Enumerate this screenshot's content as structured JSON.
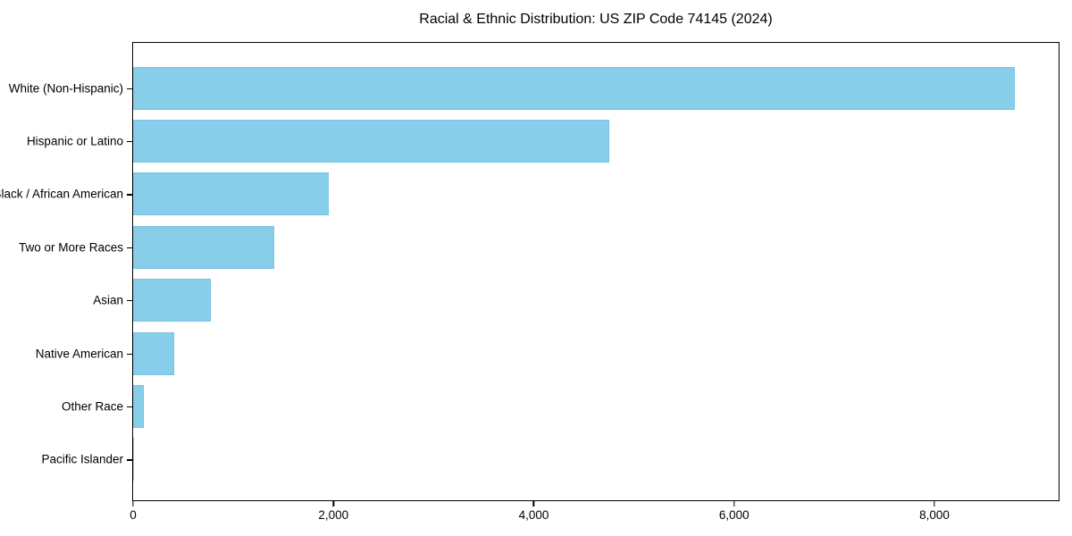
{
  "chart": {
    "title": "Racial & Ethnic Distribution: US ZIP Code 74145 (2024)"
  },
  "chart_data": {
    "type": "bar",
    "orientation": "horizontal",
    "title": "Racial & Ethnic Distribution: US ZIP Code 74145 (2024)",
    "categories": [
      "White (Non-Hispanic)",
      "Hispanic or Latino",
      "Black / African American",
      "Two or More Races",
      "Asian",
      "Native American",
      "Other Race",
      "Pacific Islander"
    ],
    "values": [
      8800,
      4750,
      1950,
      1410,
      780,
      410,
      105,
      10
    ],
    "xlabel": "",
    "ylabel": "",
    "xlim": [
      0,
      9240
    ],
    "xticks": [
      0,
      2000,
      4000,
      6000,
      8000
    ],
    "xtick_labels": [
      "0",
      "2,000",
      "4,000",
      "6,000",
      "8,000"
    ],
    "bar_color": "#87CEEB",
    "spine_color": "#000000",
    "text_color": "#000000",
    "grid": false,
    "legend": null
  }
}
